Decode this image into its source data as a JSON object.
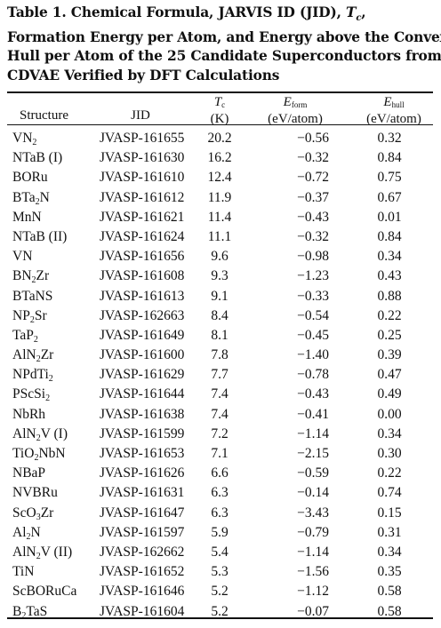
{
  "caption": {
    "line1_a": "Table 1. Chemical Formula, JARVIS ID (JID), ",
    "line1_sym": "T",
    "line1_sub": "c",
    "line1_b": ",",
    "line2": "Formation Energy per Atom, and Energy above the Convex",
    "line3": "Hull per Atom of the 25 Candidate Superconductors from",
    "line4": "CDVAE Verified by DFT Calculations"
  },
  "headers": {
    "structure": "Structure",
    "jid": "JID",
    "tc_sym": "T",
    "tc_sub": "c",
    "tc_unit": "(K)",
    "eform_sym": "E",
    "eform_sub": "form",
    "eform_unit": "(eV/atom)",
    "ehull_sym": "E",
    "ehull_sub": "hull",
    "ehull_unit": "(eV/atom)"
  },
  "rows": [
    {
      "structure": [
        [
          "VN",
          ""
        ],
        [
          "2",
          "sub"
        ]
      ],
      "jid": "JVASP-161655",
      "tc": "20.2",
      "eform": "−0.56",
      "ehull": "0.32"
    },
    {
      "structure": [
        [
          "NTaB (I)",
          ""
        ]
      ],
      "jid": "JVASP-161630",
      "tc": "16.2",
      "eform": "−0.32",
      "ehull": "0.84"
    },
    {
      "structure": [
        [
          "BORu",
          ""
        ]
      ],
      "jid": "JVASP-161610",
      "tc": "12.4",
      "eform": "−0.72",
      "ehull": "0.75"
    },
    {
      "structure": [
        [
          "BTa",
          ""
        ],
        [
          "2",
          "sub"
        ],
        [
          "N",
          ""
        ]
      ],
      "jid": "JVASP-161612",
      "tc": "11.9",
      "eform": "−0.37",
      "ehull": "0.67"
    },
    {
      "structure": [
        [
          "MnN",
          ""
        ]
      ],
      "jid": "JVASP-161621",
      "tc": "11.4",
      "eform": "−0.43",
      "ehull": "0.01"
    },
    {
      "structure": [
        [
          "NTaB (II)",
          ""
        ]
      ],
      "jid": "JVASP-161624",
      "tc": "11.1",
      "eform": "−0.32",
      "ehull": "0.84"
    },
    {
      "structure": [
        [
          "VN",
          ""
        ]
      ],
      "jid": "JVASP-161656",
      "tc": "9.6",
      "eform": "−0.98",
      "ehull": "0.34"
    },
    {
      "structure": [
        [
          "BN",
          ""
        ],
        [
          "2",
          "sub"
        ],
        [
          "Zr",
          ""
        ]
      ],
      "jid": "JVASP-161608",
      "tc": "9.3",
      "eform": "−1.23",
      "ehull": "0.43"
    },
    {
      "structure": [
        [
          "BTaNS",
          ""
        ]
      ],
      "jid": "JVASP-161613",
      "tc": "9.1",
      "eform": "−0.33",
      "ehull": "0.88"
    },
    {
      "structure": [
        [
          "NP",
          ""
        ],
        [
          "2",
          "sub"
        ],
        [
          "Sr",
          ""
        ]
      ],
      "jid": "JVASP-162663",
      "tc": "8.4",
      "eform": "−0.54",
      "ehull": "0.22"
    },
    {
      "structure": [
        [
          "TaP",
          ""
        ],
        [
          "2",
          "sub"
        ]
      ],
      "jid": "JVASP-161649",
      "tc": "8.1",
      "eform": "−0.45",
      "ehull": "0.25"
    },
    {
      "structure": [
        [
          "AlN",
          ""
        ],
        [
          "2",
          "sub"
        ],
        [
          "Zr",
          ""
        ]
      ],
      "jid": "JVASP-161600",
      "tc": "7.8",
      "eform": "−1.40",
      "ehull": "0.39"
    },
    {
      "structure": [
        [
          "NPdTi",
          ""
        ],
        [
          "2",
          "sub"
        ]
      ],
      "jid": "JVASP-161629",
      "tc": "7.7",
      "eform": "−0.78",
      "ehull": "0.47"
    },
    {
      "structure": [
        [
          "PScSi",
          ""
        ],
        [
          "2",
          "sub"
        ]
      ],
      "jid": "JVASP-161644",
      "tc": "7.4",
      "eform": "−0.43",
      "ehull": "0.49"
    },
    {
      "structure": [
        [
          "NbRh",
          ""
        ]
      ],
      "jid": "JVASP-161638",
      "tc": "7.4",
      "eform": "−0.41",
      "ehull": "0.00"
    },
    {
      "structure": [
        [
          "AlN",
          ""
        ],
        [
          "2",
          "sub"
        ],
        [
          "V (I)",
          ""
        ]
      ],
      "jid": "JVASP-161599",
      "tc": "7.2",
      "eform": "−1.14",
      "ehull": "0.34"
    },
    {
      "structure": [
        [
          "TiO",
          ""
        ],
        [
          "2",
          "sub"
        ],
        [
          "NbN",
          ""
        ]
      ],
      "jid": "JVASP-161653",
      "tc": "7.1",
      "eform": "−2.15",
      "ehull": "0.30"
    },
    {
      "structure": [
        [
          "NBaP",
          ""
        ]
      ],
      "jid": "JVASP-161626",
      "tc": "6.6",
      "eform": "−0.59",
      "ehull": "0.22"
    },
    {
      "structure": [
        [
          "NVBRu",
          ""
        ]
      ],
      "jid": "JVASP-161631",
      "tc": "6.3",
      "eform": "−0.14",
      "ehull": "0.74"
    },
    {
      "structure": [
        [
          "ScO",
          ""
        ],
        [
          "3",
          "sub"
        ],
        [
          "Zr",
          ""
        ]
      ],
      "jid": "JVASP-161647",
      "tc": "6.3",
      "eform": "−3.43",
      "ehull": "0.15"
    },
    {
      "structure": [
        [
          "Al",
          ""
        ],
        [
          "2",
          "sub"
        ],
        [
          "N",
          ""
        ]
      ],
      "jid": "JVASP-161597",
      "tc": "5.9",
      "eform": "−0.79",
      "ehull": "0.31"
    },
    {
      "structure": [
        [
          "AlN",
          ""
        ],
        [
          "2",
          "sub"
        ],
        [
          "V (II)",
          ""
        ]
      ],
      "jid": "JVASP-162662",
      "tc": "5.4",
      "eform": "−1.14",
      "ehull": "0.34"
    },
    {
      "structure": [
        [
          "TiN",
          ""
        ]
      ],
      "jid": "JVASP-161652",
      "tc": "5.3",
      "eform": "−1.56",
      "ehull": "0.35"
    },
    {
      "structure": [
        [
          "ScBORuCa",
          ""
        ]
      ],
      "jid": "JVASP-161646",
      "tc": "5.2",
      "eform": "−1.12",
      "ehull": "0.58"
    },
    {
      "structure": [
        [
          "B",
          ""
        ],
        [
          "2",
          "sub"
        ],
        [
          "TaS",
          ""
        ]
      ],
      "jid": "JVASP-161604",
      "tc": "5.2",
      "eform": "−0.07",
      "ehull": "0.58"
    }
  ]
}
